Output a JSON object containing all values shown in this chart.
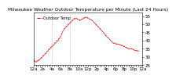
{
  "title": "Milwaukee Weather Outdoor Temperature per Minute (Last 24 Hours)",
  "line_color": "#ff0000",
  "bg_color": "#ffffff",
  "plot_bg_color": "#ffffff",
  "grid_color": "#888888",
  "ylim": [
    25,
    57
  ],
  "yticks": [
    25,
    30,
    35,
    40,
    45,
    50,
    55
  ],
  "ylabel_fontsize": 4,
  "title_fontsize": 4.2,
  "y_values": [
    28,
    27.5,
    27,
    27.2,
    27.5,
    27.8,
    28,
    28.2,
    28.5,
    29,
    29.5,
    30,
    30.5,
    31,
    31.5,
    32,
    32.5,
    33,
    33.5,
    34,
    34.5,
    35,
    35.5,
    36,
    36.5,
    37,
    37.5,
    38,
    38.5,
    39,
    39.5,
    40,
    40.5,
    41,
    41.5,
    42,
    43,
    44,
    45,
    46,
    47,
    47.5,
    48,
    48.5,
    49,
    49.5,
    50,
    50.5,
    51,
    51.5,
    52,
    52.5,
    53,
    53.2,
    53.5,
    53.7,
    53.8,
    53.5,
    53.2,
    53,
    52.8,
    52.5,
    52.8,
    53,
    53.2,
    53.5,
    53.8,
    54,
    54.2,
    54.5,
    54.3,
    54,
    53.8,
    53.5,
    53.2,
    53,
    52.8,
    52.5,
    52,
    51.5,
    51,
    50.5,
    50,
    49.5,
    49,
    48.5,
    48,
    47.5,
    47,
    46.5,
    46,
    45.5,
    45,
    44.5,
    44,
    43.5,
    43,
    42.5,
    42,
    41.5,
    41,
    40.5,
    40,
    39.5,
    39,
    38.5,
    38.5,
    38.5,
    38,
    38,
    38,
    38,
    38,
    37.5,
    37.5,
    37.5,
    37,
    37,
    37,
    36.5,
    36.5,
    36,
    36,
    35.5,
    35.5,
    35,
    35,
    35,
    35,
    35,
    35,
    34.5,
    34.5,
    34,
    34,
    34,
    34,
    33.5,
    33.5
  ],
  "vline_positions": [
    24,
    48
  ],
  "xtick_labels": [
    "12a",
    "",
    "",
    "",
    "2a",
    "",
    "",
    "",
    "4a",
    "",
    "",
    "",
    "6a",
    "",
    "",
    "",
    "8a",
    "",
    "",
    "",
    "10a",
    "",
    "",
    "",
    "12p",
    "",
    "",
    "",
    "2p",
    "",
    "",
    "",
    "4p",
    "",
    "",
    "",
    "6p",
    "",
    "",
    "",
    "8p",
    "",
    "",
    "",
    "10p",
    "",
    "",
    "",
    "12a"
  ],
  "xtick_positions": [
    0,
    3,
    6,
    9,
    12,
    15,
    18,
    21,
    24,
    27,
    30,
    33,
    36,
    39,
    42,
    45,
    48,
    51,
    54,
    57,
    60,
    63,
    66,
    69,
    72,
    75,
    78,
    81,
    84,
    87,
    90,
    93,
    96,
    99,
    102,
    105,
    108,
    111,
    114,
    117,
    120,
    123,
    126,
    129,
    132,
    135,
    138,
    141,
    144
  ],
  "legend_label": "Outdoor Temp"
}
